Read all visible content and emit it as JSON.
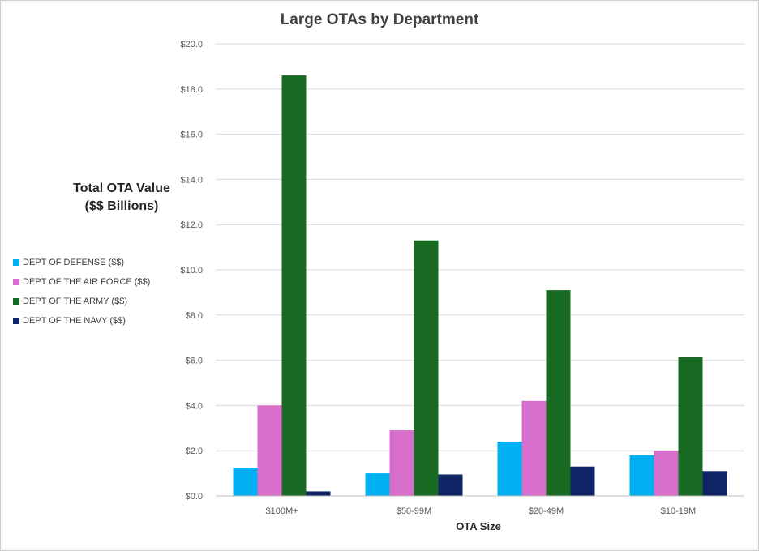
{
  "chart_data": {
    "type": "bar",
    "title": "Large OTAs by Department",
    "ylabel_lines": [
      "Total OTA Value",
      "($$ Billions)"
    ],
    "xlabel": "OTA Size",
    "categories": [
      "$100M+",
      "$50-99M",
      "$20-49M",
      "$10-19M"
    ],
    "ylim": [
      0,
      20
    ],
    "yticks": [
      "$0.0",
      "$2.0",
      "$4.0",
      "$6.0",
      "$8.0",
      "$10.0",
      "$12.0",
      "$14.0",
      "$16.0",
      "$18.0",
      "$20.0"
    ],
    "grid": true,
    "legend_position": "left",
    "series": [
      {
        "name": "DEPT OF DEFENSE ($$)",
        "color": "#00b0f0",
        "values": [
          1.25,
          1.0,
          2.4,
          1.8
        ]
      },
      {
        "name": "DEPT OF THE AIR FORCE ($$)",
        "color": "#d86ecc",
        "values": [
          4.0,
          2.9,
          4.2,
          2.0
        ]
      },
      {
        "name": "DEPT OF THE ARMY ($$)",
        "color": "#196b24",
        "values": [
          18.6,
          11.3,
          9.1,
          6.15
        ]
      },
      {
        "name": "DEPT OF THE NAVY ($$)",
        "color": "#0e2464",
        "values": [
          0.2,
          0.95,
          1.3,
          1.1
        ]
      }
    ]
  }
}
